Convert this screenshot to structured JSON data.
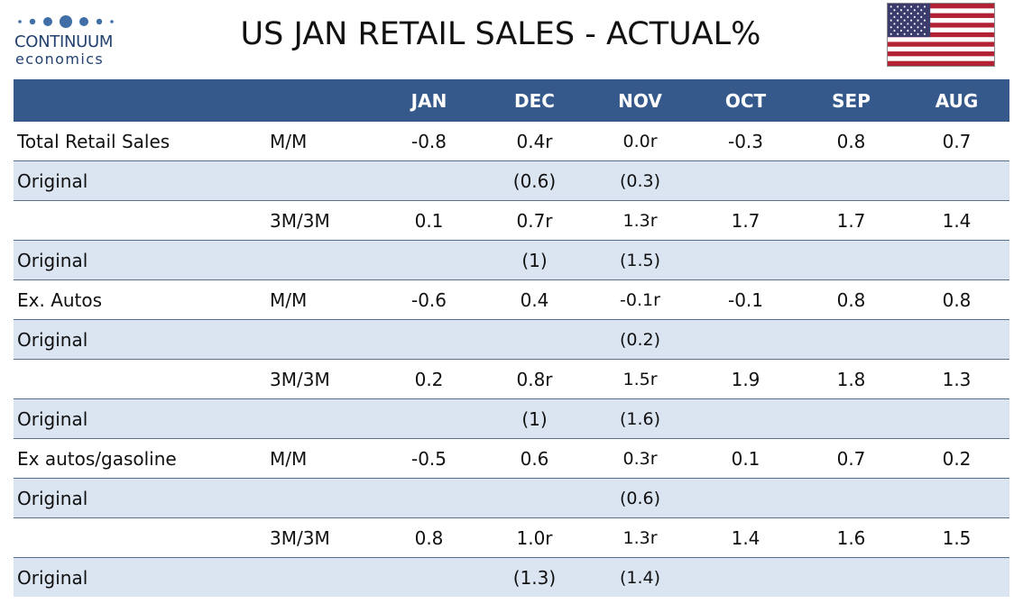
{
  "logo": {
    "name": "CONTINUUM",
    "sub": "economics",
    "dot_color": "#3f6fa6"
  },
  "title": "US JAN RETAIL SALES - ACTUAL%",
  "flag_icon": "us-flag-icon",
  "colors": {
    "header_bg": "#36598b",
    "header_text": "#ffffff",
    "alt_row_bg": "#dbe4f1",
    "row_border": "#5b6f8e"
  },
  "table": {
    "headers": [
      "",
      "",
      "JAN",
      "DEC",
      "NOV",
      "OCT",
      "SEP",
      "AUG"
    ],
    "rows": [
      {
        "label": "Total Retail Sales",
        "measure": "M/M",
        "values": [
          "-0.8",
          "0.4r",
          "0.0r",
          "-0.3",
          "0.8",
          "0.7"
        ]
      },
      {
        "label": "Original",
        "measure": "",
        "values": [
          "",
          "(0.6)",
          "(0.3)",
          "",
          "",
          ""
        ]
      },
      {
        "label": "",
        "measure": "3M/3M",
        "values": [
          "0.1",
          "0.7r",
          "1.3r",
          "1.7",
          "1.7",
          "1.4"
        ]
      },
      {
        "label": "Original",
        "measure": "",
        "values": [
          "",
          "(1)",
          "(1.5)",
          "",
          "",
          ""
        ]
      },
      {
        "label": "Ex. Autos",
        "measure": "M/M",
        "values": [
          "-0.6",
          "0.4",
          "-0.1r",
          "-0.1",
          "0.8",
          "0.8"
        ]
      },
      {
        "label": "Original",
        "measure": "",
        "values": [
          "",
          "",
          "(0.2)",
          "",
          "",
          ""
        ]
      },
      {
        "label": "",
        "measure": "3M/3M",
        "values": [
          "0.2",
          "0.8r",
          "1.5r",
          "1.9",
          "1.8",
          "1.3"
        ]
      },
      {
        "label": "Original",
        "measure": "",
        "values": [
          "",
          "(1)",
          "(1.6)",
          "",
          "",
          ""
        ]
      },
      {
        "label": "Ex autos/gasoline",
        "measure": "M/M",
        "values": [
          "-0.5",
          "0.6",
          "0.3r",
          "0.1",
          "0.7",
          "0.2"
        ]
      },
      {
        "label": "Original",
        "measure": "",
        "values": [
          "",
          "",
          "(0.6)",
          "",
          "",
          ""
        ]
      },
      {
        "label": "",
        "measure": "3M/3M",
        "values": [
          "0.8",
          "1.0r",
          "1.3r",
          "1.4",
          "1.6",
          "1.5"
        ]
      },
      {
        "label": "Original",
        "measure": "",
        "values": [
          "",
          "(1.3)",
          "(1.4)",
          "",
          "",
          ""
        ]
      }
    ]
  }
}
